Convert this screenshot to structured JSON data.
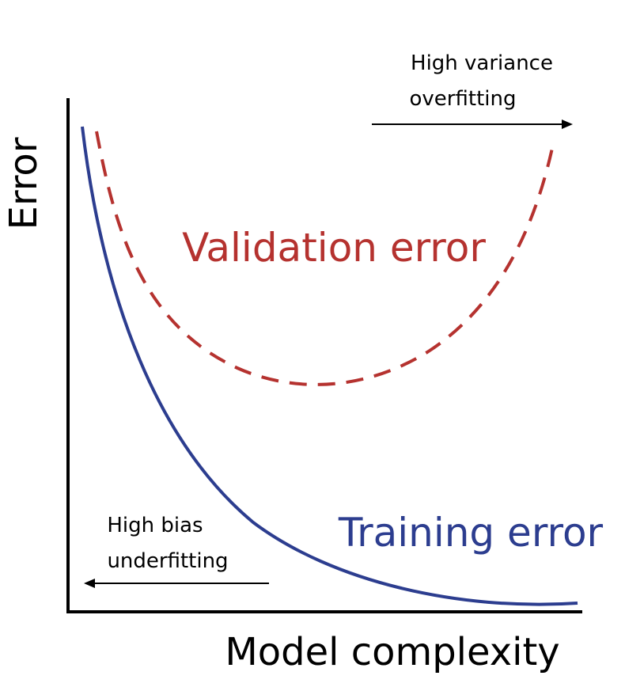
{
  "diagram": {
    "y_axis_label": "Error",
    "x_axis_label": "Model complexity",
    "validation_label": "Validation error",
    "training_label": "Training error",
    "overfit_note": {
      "line1": "High variance",
      "line2": "overfitting"
    },
    "underfit_note": {
      "line1": "High bias",
      "line2": "underfitting"
    },
    "colors": {
      "validation": "#b5322f",
      "training": "#2c3d8f",
      "axes": "#000000"
    }
  }
}
